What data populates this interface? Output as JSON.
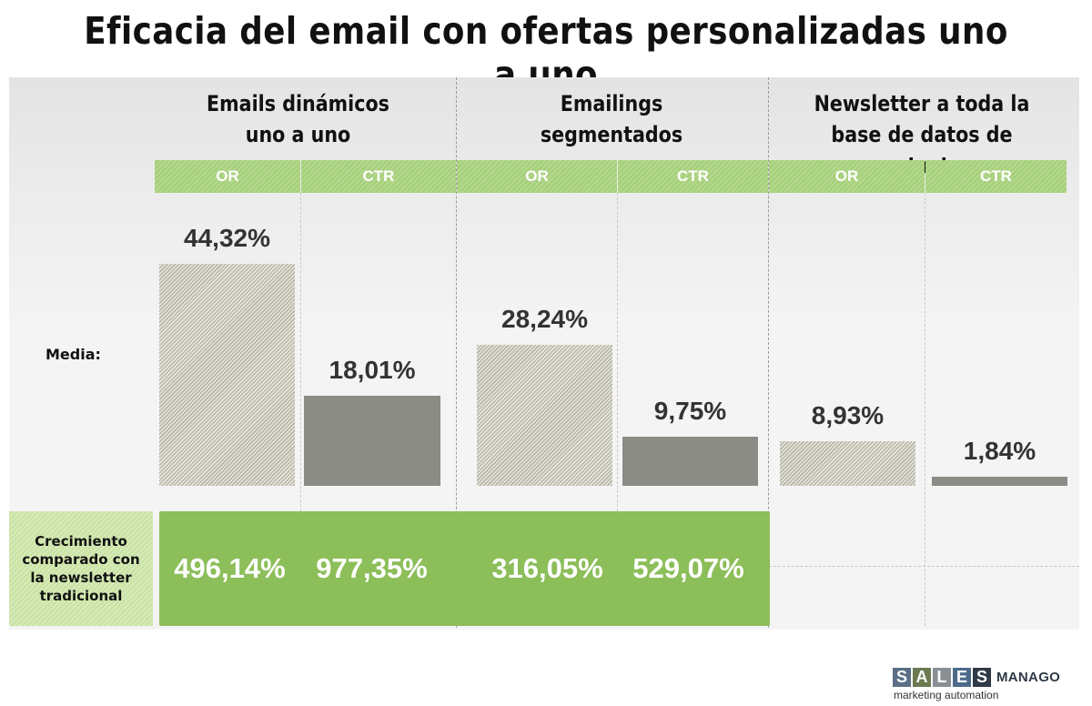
{
  "title": "Eficacia del email con ofertas personalizadas uno a uno",
  "groups": [
    {
      "line1": "Emails dinámicos",
      "line2": "uno a uno"
    },
    {
      "line1": "Emailings",
      "line2": "segmentados"
    },
    {
      "line1": "Newsletter a toda la",
      "line2": "base de datos de contactos"
    }
  ],
  "col_labels": [
    "OR",
    "CTR",
    "OR",
    "CTR",
    "OR",
    "CTR"
  ],
  "row_media_label": "Media:",
  "growth_label": "Crecimiento comparado con la newsletter tradicional",
  "growth_values": [
    "496,14%",
    "977,35%",
    "316,05%",
    "529,07%"
  ],
  "brand": {
    "letters": [
      "S",
      "A",
      "L",
      "E",
      "S"
    ],
    "letter_colors": [
      "#5a6f86",
      "#6c7a52",
      "#8a8f94",
      "#4d6a8a",
      "#2f3a47"
    ],
    "name": "MANAGO",
    "tagline": "marketing automation"
  },
  "chart_data": {
    "type": "bar",
    "title": "Eficacia del email con ofertas personalizadas uno a uno",
    "categories": [
      "Emails dinámicos uno a uno",
      "Emailings segmentados",
      "Newsletter a toda la base de datos de contactos"
    ],
    "series": [
      {
        "name": "OR",
        "values": [
          44.32,
          28.24,
          8.93
        ],
        "labels": [
          "44,32%",
          "28,24%",
          "8,93%"
        ]
      },
      {
        "name": "CTR",
        "values": [
          18.01,
          9.75,
          1.84
        ],
        "labels": [
          "18,01%",
          "9,75%",
          "1,84%"
        ]
      }
    ],
    "growth_vs_newsletter": {
      "OR": [
        "496,14%",
        "316,05%"
      ],
      "CTR": [
        "977,35%",
        "529,07%"
      ]
    },
    "colors": {
      "OR": "#c9c8bb",
      "CTR": "#8b8c86",
      "header": "#a9d17f",
      "growth": "#8cbe59"
    }
  }
}
